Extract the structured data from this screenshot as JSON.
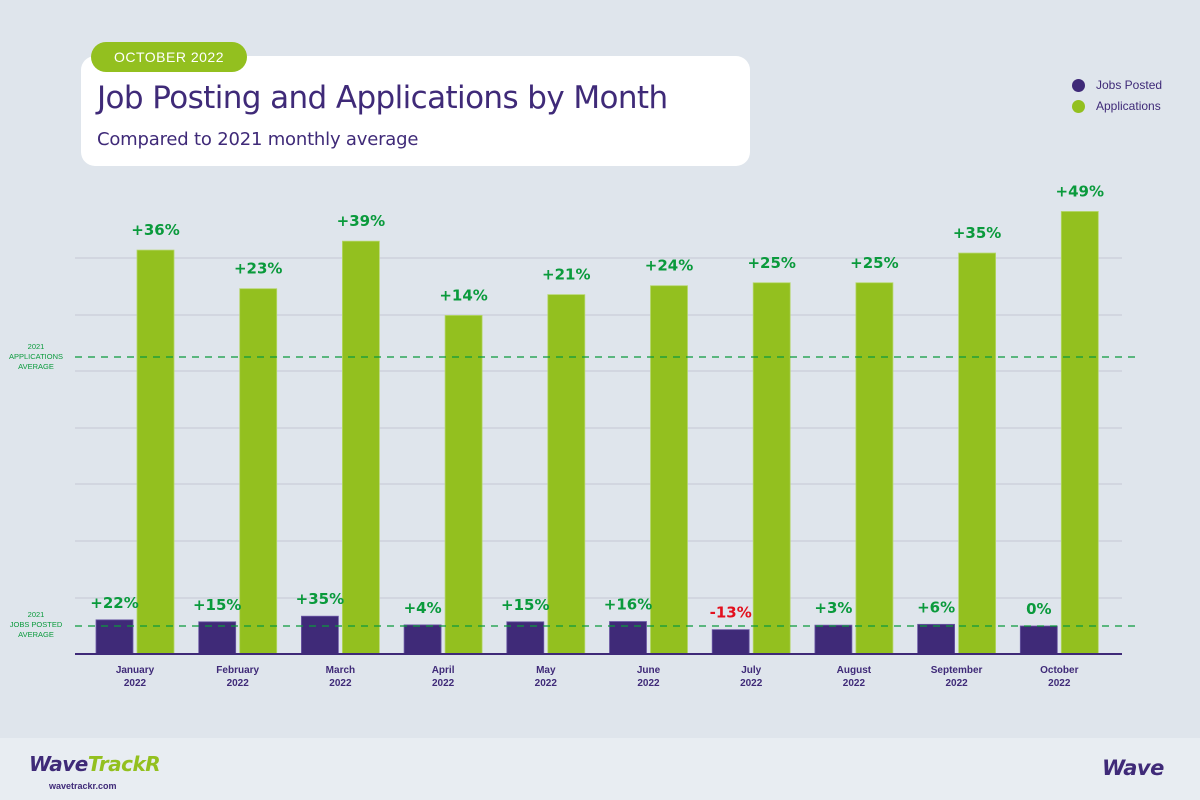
{
  "header": {
    "badge": "OCTOBER 2022",
    "title": "Job Posting and Applications by Month",
    "subtitle": "Compared to 2021 monthly average"
  },
  "colors": {
    "jobs_posted": "#3f2a78",
    "applications": "#93c01f",
    "positive_label": "#0a9a3c",
    "negative_label": "#e3101e",
    "average_line": "#0a9a3c",
    "gridline": "#c9ced9",
    "axis": "#3f2a78"
  },
  "chart_data": {
    "type": "bar",
    "title": "Job Posting and Applications by Month",
    "subtitle": "Compared to 2021 monthly average",
    "xlabel": "",
    "ylabel": "",
    "value_unit": "percent change vs 2021 monthly average",
    "categories": [
      [
        "January",
        "2022"
      ],
      [
        "February",
        "2022"
      ],
      [
        "March",
        "2022"
      ],
      [
        "April",
        "2022"
      ],
      [
        "May",
        "2022"
      ],
      [
        "June",
        "2022"
      ],
      [
        "July",
        "2022"
      ],
      [
        "August",
        "2022"
      ],
      [
        "September",
        "2022"
      ],
      [
        "October",
        "2022"
      ]
    ],
    "series": [
      {
        "name": "Jobs Posted",
        "values": [
          22,
          15,
          35,
          4,
          15,
          16,
          -13,
          3,
          6,
          0
        ],
        "labels": [
          "+22%",
          "+15%",
          "+35%",
          "+4%",
          "+15%",
          "+16%",
          "-13%",
          "+3%",
          "+6%",
          "0%"
        ]
      },
      {
        "name": "Applications",
        "values": [
          36,
          23,
          39,
          14,
          21,
          24,
          25,
          25,
          35,
          49
        ],
        "labels": [
          "+36%",
          "+23%",
          "+39%",
          "+14%",
          "+21%",
          "+24%",
          "+25%",
          "+25%",
          "+35%",
          "+49%"
        ]
      }
    ],
    "reference_lines": [
      {
        "name": "2021 Applications Average",
        "label_lines": [
          "2021",
          "APPLICATIONS",
          "AVERAGE"
        ],
        "series": "Applications"
      },
      {
        "name": "2021 Jobs Posted Average",
        "label_lines": [
          "2021",
          "JOBS POSTED",
          "AVERAGE"
        ],
        "series": "Jobs Posted"
      }
    ],
    "legend": {
      "position": "top-right",
      "entries": [
        "Jobs Posted",
        "Applications"
      ]
    },
    "grid": true
  },
  "legend": {
    "items": [
      {
        "label": "Jobs Posted"
      },
      {
        "label": "Applications"
      }
    ]
  },
  "footer": {
    "logo_part1": "Wave",
    "logo_part2": "TrackR",
    "url": "wavetrackr.com",
    "brand": "Wave"
  }
}
